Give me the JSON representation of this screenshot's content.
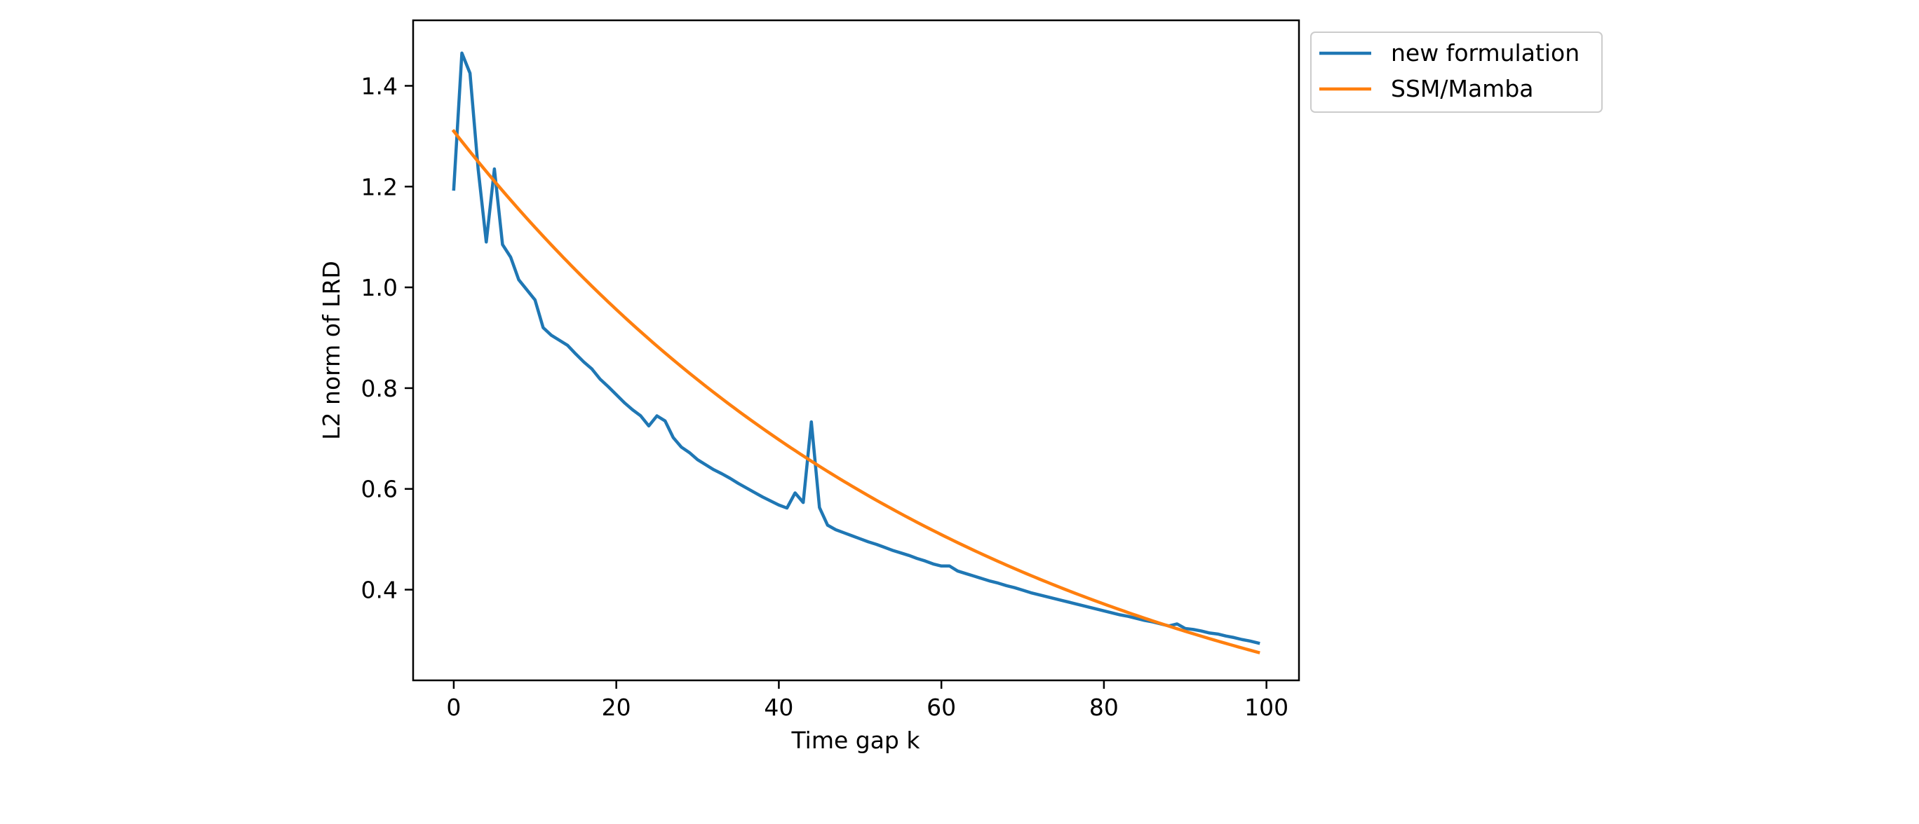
{
  "chart_data": {
    "type": "line",
    "title": "",
    "xlabel": "Time gap k",
    "ylabel": "L2 norm of LRD",
    "xlim": [
      -5,
      104
    ],
    "ylim": [
      0.22,
      1.53
    ],
    "xticks": [
      0,
      20,
      40,
      60,
      80,
      100
    ],
    "yticks": [
      0.4,
      0.6,
      0.8,
      1.0,
      1.2,
      1.4
    ],
    "xtick_labels": [
      "0",
      "20",
      "40",
      "60",
      "80",
      "100"
    ],
    "ytick_labels": [
      "0.4",
      "0.6",
      "0.8",
      "1.0",
      "1.2",
      "1.4"
    ],
    "grid": false,
    "legend_position": "outside-top-right",
    "series": [
      {
        "name": "new formulation",
        "color": "#1f77b4",
        "x": [
          0,
          1,
          2,
          3,
          4,
          5,
          6,
          7,
          8,
          9,
          10,
          11,
          12,
          13,
          14,
          15,
          16,
          17,
          18,
          19,
          20,
          21,
          22,
          23,
          24,
          25,
          26,
          27,
          28,
          29,
          30,
          31,
          32,
          33,
          34,
          35,
          36,
          37,
          38,
          39,
          40,
          41,
          42,
          43,
          44,
          45,
          46,
          47,
          48,
          49,
          50,
          51,
          52,
          53,
          54,
          55,
          56,
          57,
          58,
          59,
          60,
          61,
          62,
          63,
          64,
          65,
          66,
          67,
          68,
          69,
          70,
          71,
          72,
          73,
          74,
          75,
          76,
          77,
          78,
          79,
          80,
          81,
          82,
          83,
          84,
          85,
          86,
          87,
          88,
          89,
          90,
          91,
          92,
          93,
          94,
          95,
          96,
          97,
          98,
          99
        ],
        "y": [
          1.195,
          1.465,
          1.425,
          1.235,
          1.09,
          1.235,
          1.085,
          1.06,
          1.015,
          0.995,
          0.975,
          0.92,
          0.905,
          0.895,
          0.885,
          0.868,
          0.852,
          0.838,
          0.818,
          0.803,
          0.787,
          0.771,
          0.757,
          0.745,
          0.725,
          0.745,
          0.735,
          0.702,
          0.683,
          0.672,
          0.658,
          0.648,
          0.638,
          0.63,
          0.621,
          0.611,
          0.602,
          0.593,
          0.584,
          0.576,
          0.568,
          0.562,
          0.592,
          0.573,
          0.733,
          0.563,
          0.528,
          0.519,
          0.513,
          0.507,
          0.501,
          0.495,
          0.49,
          0.484,
          0.478,
          0.473,
          0.468,
          0.462,
          0.457,
          0.451,
          0.447,
          0.447,
          0.437,
          0.432,
          0.427,
          0.422,
          0.417,
          0.413,
          0.408,
          0.404,
          0.399,
          0.394,
          0.39,
          0.386,
          0.382,
          0.378,
          0.374,
          0.37,
          0.366,
          0.362,
          0.358,
          0.354,
          0.35,
          0.347,
          0.343,
          0.339,
          0.336,
          0.332,
          0.328,
          0.332,
          0.323,
          0.321,
          0.318,
          0.314,
          0.312,
          0.308,
          0.305,
          0.301,
          0.298,
          0.294
        ]
      },
      {
        "name": "SSM/Mamba",
        "color": "#ff7f0e",
        "model": "exp",
        "a": 1.31,
        "b": 0.01575,
        "x_start": 0,
        "x_end": 99
      }
    ]
  }
}
